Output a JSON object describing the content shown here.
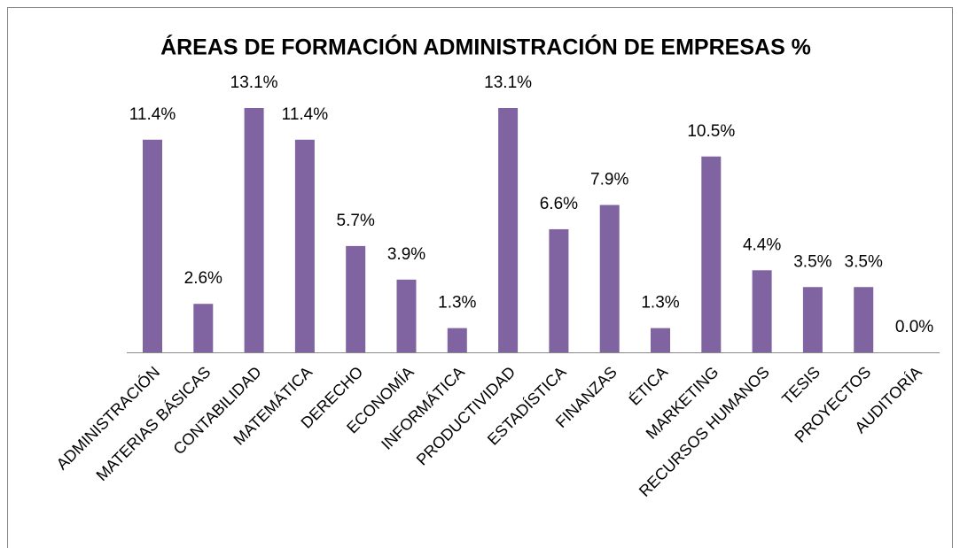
{
  "chart_data": {
    "type": "bar",
    "title": "ÁREAS DE FORMACIÓN ADMINISTRACIÓN DE EMPRESAS %",
    "categories": [
      "ADMINISTRACIÓN",
      "MATERIAS BÁSICAS",
      "CONTABILIDAD",
      "MATEMÁTICA",
      "DERECHO",
      "ECONOMÍA",
      "INFORMÁTICA",
      "PRODUCTIVIDAD",
      "ESTADÍSTICA",
      "FINANZAS",
      "ÉTICA",
      "MARKETING",
      "RECURSOS HUMANOS",
      "TESIS",
      "PROYECTOS",
      "AUDITORÍA"
    ],
    "values": [
      11.4,
      2.6,
      13.1,
      11.4,
      5.7,
      3.9,
      1.3,
      13.1,
      6.6,
      7.9,
      1.3,
      10.5,
      4.4,
      3.5,
      3.5,
      0.0
    ],
    "value_labels": [
      "11.4%",
      "2.6%",
      "13.1%",
      "11.4%",
      "5.7%",
      "3.9%",
      "1.3%",
      "13.1%",
      "6.6%",
      "7.9%",
      "1.3%",
      "10.5%",
      "4.4%",
      "3.5%",
      "3.5%",
      "0.0%"
    ],
    "color": "#8064a2"
  }
}
